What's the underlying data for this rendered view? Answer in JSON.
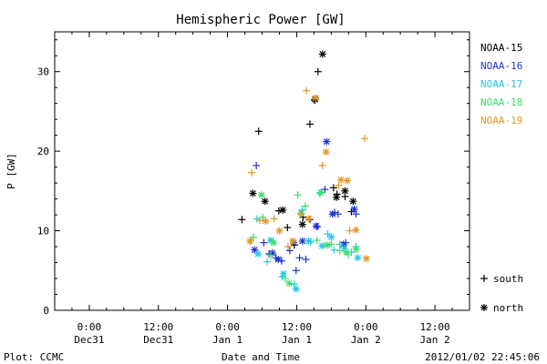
{
  "chart_data": {
    "type": "scatter",
    "title": "Hemispheric Power [GW]",
    "ylabel": "P [GW]",
    "xlabel": "Date and Time",
    "plot_credit": "Plot: CCMC",
    "timestamp": "2012/01/02 22:45:06",
    "x_unit": "hours since 2011-12-31 00:00",
    "xlim": [
      -6,
      66
    ],
    "ylim": [
      0,
      35
    ],
    "grid": false,
    "legend_position": "right",
    "x_ticks": [
      {
        "x": 0,
        "line1": "0:00",
        "line2": "Dec31"
      },
      {
        "x": 12,
        "line1": "12:00",
        "line2": "Dec31"
      },
      {
        "x": 24,
        "line1": "0:00",
        "line2": "Jan 1"
      },
      {
        "x": 36,
        "line1": "12:00",
        "line2": "Jan 1"
      },
      {
        "x": 48,
        "line1": "0:00",
        "line2": "Jan 2"
      },
      {
        "x": 60,
        "line1": "12:00",
        "line2": "Jan 2"
      }
    ],
    "y_ticks": [
      0,
      10,
      20,
      30
    ],
    "marker_legend": [
      {
        "symbol": "+",
        "label": "south"
      },
      {
        "symbol": "*",
        "label": "north"
      }
    ],
    "series": [
      {
        "name": "NOAA-15",
        "color": "#000000",
        "south": [
          [
            26.5,
            11.4
          ],
          [
            29.4,
            22.5
          ],
          [
            32.9,
            12.5
          ],
          [
            34.4,
            10.4
          ],
          [
            35.6,
            8.2
          ],
          [
            37.1,
            11.7
          ],
          [
            38.3,
            23.4
          ],
          [
            39.1,
            26.4
          ],
          [
            39.7,
            30.0
          ],
          [
            42.4,
            15.4
          ],
          [
            43.0,
            14.6
          ],
          [
            44.4,
            14.3
          ],
          [
            45.5,
            12.4
          ]
        ],
        "north": [
          [
            28.4,
            14.7
          ],
          [
            30.5,
            13.7
          ],
          [
            33.6,
            12.6
          ],
          [
            37.0,
            10.8
          ],
          [
            39.2,
            26.5
          ],
          [
            40.5,
            32.2
          ],
          [
            42.9,
            14.2
          ],
          [
            44.4,
            15.0
          ],
          [
            45.8,
            13.7
          ]
        ]
      },
      {
        "name": "NOAA-16",
        "color": "#1f33cc",
        "south": [
          [
            29.0,
            18.2
          ],
          [
            30.3,
            8.5
          ],
          [
            31.2,
            7.1
          ],
          [
            32.4,
            6.6
          ],
          [
            33.4,
            6.2
          ],
          [
            34.8,
            7.5
          ],
          [
            35.9,
            5.0
          ],
          [
            36.5,
            6.6
          ],
          [
            37.6,
            6.4
          ],
          [
            38.3,
            11.4
          ],
          [
            39.6,
            10.5
          ],
          [
            40.9,
            15.2
          ],
          [
            42.6,
            12.3
          ],
          [
            43.2,
            12.1
          ],
          [
            44.5,
            8.5
          ],
          [
            46.3,
            12.1
          ]
        ],
        "north": [
          [
            28.7,
            7.6
          ],
          [
            31.8,
            7.2
          ],
          [
            32.8,
            6.4
          ],
          [
            35.5,
            8.5
          ],
          [
            37.0,
            8.7
          ],
          [
            39.4,
            10.6
          ],
          [
            41.2,
            21.2
          ],
          [
            42.2,
            12.1
          ],
          [
            44.1,
            8.3
          ],
          [
            46.0,
            12.7
          ]
        ]
      },
      {
        "name": "NOAA-17",
        "color": "#1ec8e6",
        "south": [
          [
            28.0,
            8.7
          ],
          [
            29.1,
            11.5
          ],
          [
            30.9,
            6.1
          ],
          [
            33.5,
            4.2
          ],
          [
            35.6,
            3.3
          ],
          [
            37.0,
            12.6
          ],
          [
            38.4,
            8.6
          ],
          [
            40.0,
            14.7
          ],
          [
            41.4,
            9.6
          ],
          [
            42.5,
            7.6
          ],
          [
            43.5,
            8.3
          ],
          [
            45.5,
            7.3
          ],
          [
            46.3,
            8.0
          ]
        ],
        "north": [
          [
            29.3,
            7.1
          ],
          [
            31.5,
            8.8
          ],
          [
            33.7,
            4.6
          ],
          [
            35.9,
            2.7
          ],
          [
            38.1,
            8.7
          ],
          [
            40.4,
            8.1
          ],
          [
            42.0,
            9.2
          ],
          [
            44.3,
            7.8
          ],
          [
            46.6,
            6.6
          ]
        ]
      },
      {
        "name": "NOAA-18",
        "color": "#3cdc6e",
        "south": [
          [
            28.5,
            9.2
          ],
          [
            30.1,
            11.7
          ],
          [
            31.5,
            6.9
          ],
          [
            34.0,
            4.0
          ],
          [
            36.2,
            14.5
          ],
          [
            37.5,
            13.1
          ],
          [
            39.5,
            8.8
          ],
          [
            42.0,
            8.3
          ],
          [
            43.5,
            7.5
          ],
          [
            45.0,
            7.0
          ]
        ],
        "north": [
          [
            29.9,
            14.5
          ],
          [
            32.0,
            8.5
          ],
          [
            34.7,
            3.4
          ],
          [
            36.8,
            12.2
          ],
          [
            40.2,
            14.8
          ],
          [
            41.3,
            8.2
          ],
          [
            44.6,
            7.3
          ],
          [
            46.3,
            7.7
          ]
        ]
      },
      {
        "name": "NOAA-19",
        "color": "#e6961e",
        "south": [
          [
            28.2,
            17.3
          ],
          [
            29.6,
            11.3
          ],
          [
            32.1,
            11.5
          ],
          [
            34.5,
            8.0
          ],
          [
            36.7,
            12.1
          ],
          [
            37.7,
            27.6
          ],
          [
            40.5,
            18.2
          ],
          [
            43.3,
            15.7
          ],
          [
            45.2,
            10.0
          ],
          [
            47.8,
            21.6
          ]
        ],
        "north": [
          [
            27.9,
            8.7
          ],
          [
            30.6,
            11.2
          ],
          [
            33.0,
            10.0
          ],
          [
            35.3,
            8.7
          ],
          [
            38.1,
            11.5
          ],
          [
            39.3,
            26.7
          ],
          [
            41.1,
            19.9
          ],
          [
            43.7,
            16.4
          ],
          [
            44.8,
            16.3
          ],
          [
            46.3,
            10.1
          ],
          [
            48.1,
            6.5
          ]
        ]
      }
    ]
  }
}
